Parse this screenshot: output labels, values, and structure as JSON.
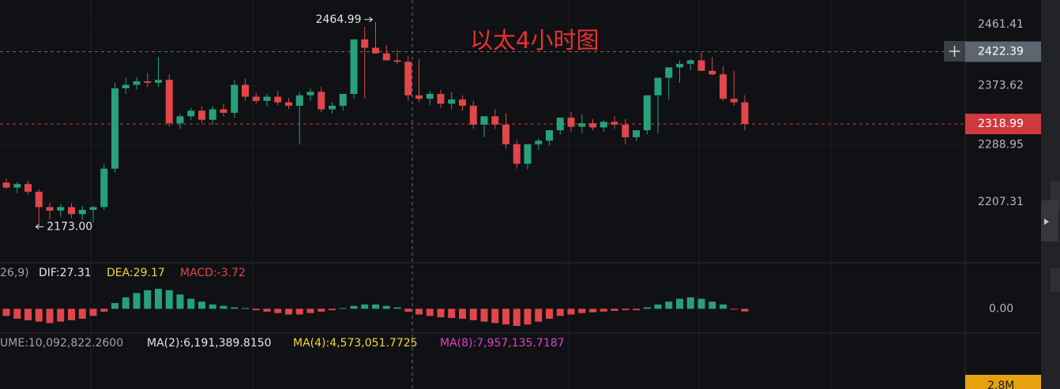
{
  "chart_data": {
    "type": "candlestick",
    "title": "以太4小时图",
    "ylim": [
      2120.3,
      2496.4
    ],
    "yticks": [
      2461.41,
      2373.62,
      2288.95,
      2207.31
    ],
    "colors": {
      "up": "#26a17b",
      "down": "#e0464a"
    },
    "crosshair_price": 2422.39,
    "last_price": 2318.99,
    "max_label": "2464.99",
    "min_label": "2173.00",
    "candles": {
      "open": [
        2235,
        2228,
        2233,
        2222,
        2200,
        2195,
        2200,
        2190,
        2196,
        2200,
        2255,
        2370,
        2375,
        2380,
        2378,
        2382,
        2320,
        2330,
        2338,
        2325,
        2340,
        2335,
        2375,
        2358,
        2352,
        2358,
        2350,
        2345,
        2360,
        2365,
        2340,
        2345,
        2362,
        2440,
        2428,
        2420,
        2410,
        2408,
        2360,
        2355,
        2362,
        2348,
        2354,
        2345,
        2318,
        2330,
        2318,
        2290,
        2262,
        2290,
        2295,
        2310,
        2328,
        2315,
        2320,
        2314,
        2322,
        2318,
        2300,
        2310,
        2360,
        2385,
        2400,
        2405,
        2410,
        2395,
        2390,
        2355,
        2350
      ],
      "high": [
        2241,
        2236,
        2238,
        2226,
        2206,
        2204,
        2206,
        2202,
        2202,
        2262,
        2378,
        2385,
        2386,
        2392,
        2415,
        2390,
        2334,
        2342,
        2344,
        2345,
        2348,
        2382,
        2384,
        2364,
        2362,
        2366,
        2356,
        2365,
        2370,
        2372,
        2350,
        2350,
        2368,
        2458,
        2464.99,
        2432,
        2425,
        2416,
        2412,
        2366,
        2368,
        2365,
        2360,
        2352,
        2325,
        2340,
        2334,
        2296,
        2268,
        2298,
        2300,
        2316,
        2336,
        2333,
        2326,
        2324,
        2330,
        2326,
        2306,
        2318,
        2366,
        2392,
        2410,
        2412,
        2422,
        2415,
        2402,
        2395,
        2360
      ],
      "low": [
        2226,
        2220,
        2218,
        2173,
        2182,
        2186,
        2184,
        2182,
        2178,
        2196,
        2250,
        2362,
        2368,
        2372,
        2372,
        2315,
        2312,
        2324,
        2320,
        2318,
        2330,
        2328,
        2352,
        2348,
        2344,
        2346,
        2340,
        2290,
        2352,
        2336,
        2334,
        2338,
        2356,
        2356,
        2422,
        2414,
        2404,
        2352,
        2350,
        2346,
        2342,
        2340,
        2338,
        2312,
        2300,
        2312,
        2284,
        2255,
        2254,
        2282,
        2288,
        2304,
        2308,
        2306,
        2310,
        2308,
        2312,
        2290,
        2295,
        2304,
        2306,
        2354,
        2378,
        2396,
        2402,
        2388,
        2352,
        2345,
        2310
      ],
      "close": [
        2228,
        2233,
        2222,
        2200,
        2195,
        2200,
        2190,
        2196,
        2200,
        2255,
        2370,
        2375,
        2380,
        2378,
        2382,
        2320,
        2330,
        2338,
        2325,
        2340,
        2335,
        2375,
        2358,
        2352,
        2358,
        2350,
        2345,
        2360,
        2365,
        2340,
        2345,
        2362,
        2440,
        2428,
        2420,
        2410,
        2408,
        2360,
        2355,
        2362,
        2348,
        2354,
        2345,
        2318,
        2330,
        2318,
        2290,
        2262,
        2290,
        2295,
        2310,
        2328,
        2315,
        2320,
        2314,
        2322,
        2318,
        2300,
        2310,
        2360,
        2385,
        2400,
        2405,
        2410,
        2395,
        2390,
        2355,
        2350,
        2318.99
      ]
    },
    "macd": {
      "params": "26,9)",
      "dif": "DIF:27.31",
      "dea": "DEA:29.17",
      "macd": "MACD:-3.72",
      "ylim": [
        -35,
        60
      ],
      "yticks": [
        {
          "value": 0,
          "label": "0.00"
        }
      ],
      "values": [
        -10,
        -14,
        -16,
        -18,
        -20,
        -18,
        -16,
        -14,
        -10,
        -4,
        8,
        16,
        22,
        26,
        28,
        26,
        20,
        14,
        10,
        6,
        4,
        2,
        1,
        -2,
        -4,
        -6,
        -8,
        -8,
        -6,
        -4,
        -2,
        1,
        4,
        6,
        6,
        4,
        2,
        -4,
        -8,
        -10,
        -12,
        -13,
        -14,
        -16,
        -18,
        -20,
        -22,
        -24,
        -22,
        -18,
        -14,
        -10,
        -8,
        -6,
        -5,
        -4,
        -3,
        -2,
        -2,
        2,
        6,
        10,
        14,
        16,
        14,
        10,
        6,
        -1,
        -3.72
      ]
    },
    "volume": {
      "legend": [
        "UME:10,092,822.2600",
        "MA(2):6,191,389.8150",
        "MA(4):4,573,051.7725",
        "MA(8):7,957,135.7187"
      ],
      "axis_label": "2.8M"
    }
  }
}
